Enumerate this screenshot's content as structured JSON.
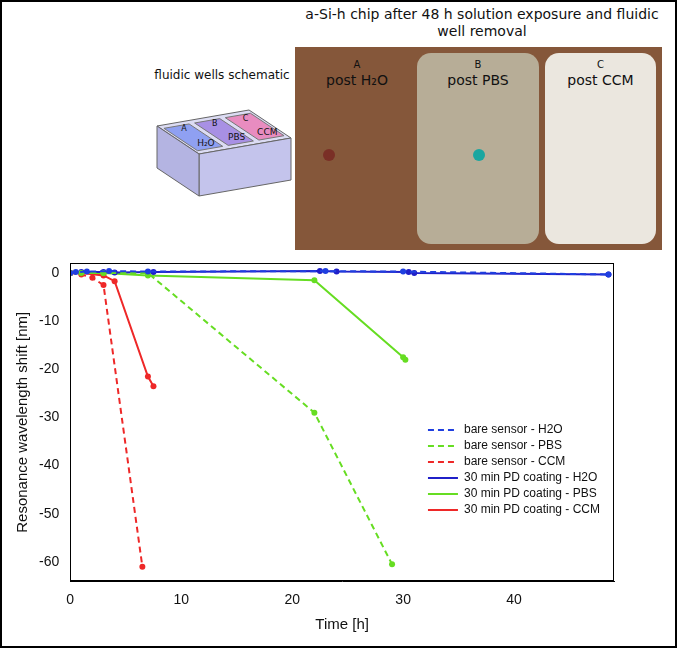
{
  "inset": {
    "title": "a-Si-h chip after 48 h solution exposure and fluidic well removal",
    "schematic": {
      "title": "fluidic wells schematic",
      "wells": [
        {
          "letter": "A",
          "label": "H₂O"
        },
        {
          "letter": "B",
          "label": "PBS"
        },
        {
          "letter": "C",
          "label": "CCM"
        }
      ]
    },
    "photo": {
      "panels": [
        {
          "letter": "A",
          "label": "post H₂O"
        },
        {
          "letter": "B",
          "label": "post PBS"
        },
        {
          "letter": "C",
          "label": "post CCM"
        }
      ]
    }
  },
  "chart_data": {
    "type": "line",
    "x_label": "Time [h]",
    "y_label": "Resonance wavelength shift [nm]",
    "xlim": [
      0,
      49
    ],
    "xticks": [
      0,
      10,
      20,
      30,
      40
    ],
    "ylim": [
      -64,
      2
    ],
    "yticks": [
      -60,
      -50,
      -40,
      -30,
      -20,
      -10,
      0
    ],
    "grid": false,
    "legend": "lower right",
    "series": [
      {
        "name": "bare sensor - H2O",
        "color": "#1f3fe0",
        "line_style": "dashed",
        "marker": "circle",
        "x": [
          0,
          0.5,
          1.5,
          3.5,
          7,
          23,
          30,
          48.5
        ],
        "values": [
          0,
          0.2,
          0.3,
          0.4,
          0.3,
          0.4,
          0.3,
          -0.3
        ]
      },
      {
        "name": "bare sensor - PBS",
        "color": "#66dd22",
        "line_style": "dashed",
        "marker": "circle",
        "x": [
          0,
          1,
          3,
          7,
          22,
          29
        ],
        "values": [
          0,
          0,
          0,
          0,
          -29,
          -60.5
        ]
      },
      {
        "name": "bare sensor - CCM",
        "color": "#ee2828",
        "line_style": "dashed",
        "marker": "circle",
        "x": [
          0,
          1,
          2,
          3,
          6.5
        ],
        "values": [
          0,
          -0.3,
          -1,
          -2.5,
          -61
        ]
      },
      {
        "name": "30 min PD coating - H2O",
        "color": "#2020c8",
        "line_style": "solid",
        "marker": "circle",
        "x": [
          0,
          1,
          3,
          4,
          7.5,
          22.5,
          24,
          30.5,
          31,
          48.5
        ],
        "values": [
          0,
          0.2,
          0.2,
          0.1,
          0.2,
          0.4,
          0.3,
          0.2,
          0,
          -0.3
        ]
      },
      {
        "name": "30 min PD coating - PBS",
        "color": "#66dd22",
        "line_style": "solid",
        "marker": "circle",
        "x": [
          0,
          1,
          3,
          7,
          22,
          30,
          30.2
        ],
        "values": [
          0,
          0,
          0,
          -0.5,
          -1.5,
          -17.5,
          -18
        ]
      },
      {
        "name": "30 min PD coating - CCM",
        "color": "#ee2828",
        "line_style": "solid",
        "marker": "circle",
        "x": [
          0,
          1,
          3,
          4,
          7,
          7.5
        ],
        "values": [
          0,
          0,
          -0.5,
          -1.7,
          -21.5,
          -23.5
        ]
      }
    ]
  }
}
